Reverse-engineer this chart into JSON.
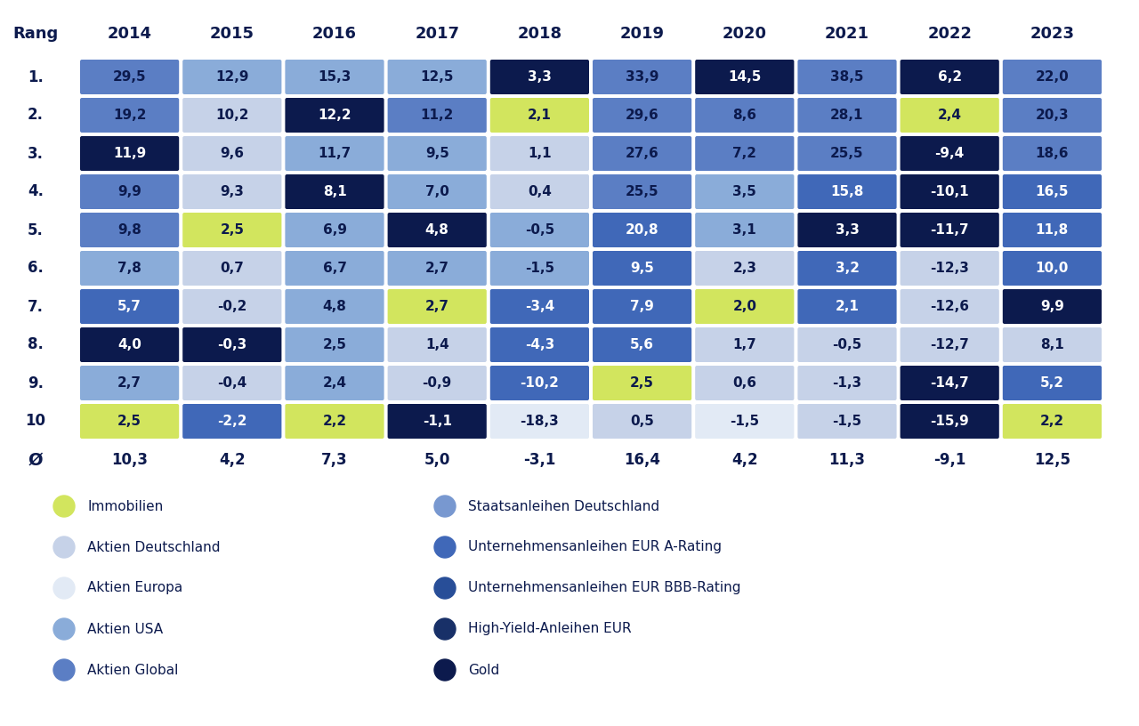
{
  "years": [
    "2014",
    "2015",
    "2016",
    "2017",
    "2018",
    "2019",
    "2020",
    "2021",
    "2022",
    "2023"
  ],
  "ranks": [
    "1.",
    "2.",
    "3.",
    "4.",
    "5.",
    "6.",
    "7.",
    "8.",
    "9.",
    "10"
  ],
  "avg_label": "Ø",
  "avg_values": [
    10.3,
    4.2,
    7.3,
    5.0,
    -3.1,
    16.4,
    4.2,
    11.3,
    -9.1,
    12.5
  ],
  "table_data": [
    [
      29.5,
      12.9,
      15.3,
      12.5,
      3.3,
      33.9,
      14.5,
      38.5,
      6.2,
      22.0
    ],
    [
      19.2,
      10.2,
      12.2,
      11.2,
      2.1,
      29.6,
      8.6,
      28.1,
      2.4,
      20.3
    ],
    [
      11.9,
      9.6,
      11.7,
      9.5,
      1.1,
      27.6,
      7.2,
      25.5,
      -9.4,
      18.6
    ],
    [
      9.9,
      9.3,
      8.1,
      7.0,
      0.4,
      25.5,
      3.5,
      15.8,
      -10.1,
      16.5
    ],
    [
      9.8,
      2.5,
      6.9,
      4.8,
      -0.5,
      20.8,
      3.1,
      3.3,
      -11.7,
      11.8
    ],
    [
      7.8,
      0.7,
      6.7,
      2.7,
      -1.5,
      9.5,
      2.3,
      3.2,
      -12.3,
      10.0
    ],
    [
      5.7,
      -0.2,
      4.8,
      2.7,
      -3.4,
      7.9,
      2.0,
      2.1,
      -12.6,
      9.9
    ],
    [
      4.0,
      -0.3,
      2.5,
      1.4,
      -4.3,
      5.6,
      1.7,
      -0.5,
      -12.7,
      8.1
    ],
    [
      2.7,
      -0.4,
      2.4,
      -0.9,
      -10.2,
      2.5,
      0.6,
      -1.3,
      -14.7,
      5.2
    ],
    [
      2.5,
      -2.2,
      2.2,
      -1.1,
      -18.3,
      0.5,
      -1.5,
      -1.5,
      -15.9,
      2.2
    ]
  ],
  "cell_colors": [
    [
      "#5b7ec4",
      "#8aacd9",
      "#8aacd9",
      "#8aacd9",
      "#0c1a4d",
      "#5b7ec4",
      "#0c1a4d",
      "#5b7ec4",
      "#0c1a4d",
      "#5b7ec4"
    ],
    [
      "#5b7ec4",
      "#c6d2e8",
      "#0c1a4d",
      "#5b7ec4",
      "#d2e55e",
      "#5b7ec4",
      "#5b7ec4",
      "#5b7ec4",
      "#d2e55e",
      "#5b7ec4"
    ],
    [
      "#0c1a4d",
      "#c6d2e8",
      "#8aacd9",
      "#8aacd9",
      "#c6d2e8",
      "#5b7ec4",
      "#5b7ec4",
      "#5b7ec4",
      "#0c1a4d",
      "#5b7ec4"
    ],
    [
      "#5b7ec4",
      "#c6d2e8",
      "#0c1a4d",
      "#8aacd9",
      "#c6d2e8",
      "#5b7ec4",
      "#8aacd9",
      "#4068b8",
      "#0c1a4d",
      "#4068b8"
    ],
    [
      "#5b7ec4",
      "#d2e55e",
      "#8aacd9",
      "#0c1a4d",
      "#8aacd9",
      "#4068b8",
      "#8aacd9",
      "#0c1a4d",
      "#0c1a4d",
      "#4068b8"
    ],
    [
      "#8aacd9",
      "#c6d2e8",
      "#8aacd9",
      "#8aacd9",
      "#8aacd9",
      "#4068b8",
      "#c6d2e8",
      "#4068b8",
      "#c6d2e8",
      "#4068b8"
    ],
    [
      "#4068b8",
      "#c6d2e8",
      "#8aacd9",
      "#d2e55e",
      "#4068b8",
      "#4068b8",
      "#d2e55e",
      "#4068b8",
      "#c6d2e8",
      "#0c1a4d"
    ],
    [
      "#0c1a4d",
      "#0c1a4d",
      "#8aacd9",
      "#c6d2e8",
      "#4068b8",
      "#4068b8",
      "#c6d2e8",
      "#c6d2e8",
      "#c6d2e8",
      "#c6d2e8"
    ],
    [
      "#8aacd9",
      "#c6d2e8",
      "#8aacd9",
      "#c6d2e8",
      "#4068b8",
      "#d2e55e",
      "#c6d2e8",
      "#c6d2e8",
      "#0c1a4d",
      "#4068b8"
    ],
    [
      "#d2e55e",
      "#4068b8",
      "#d2e55e",
      "#0c1a4d",
      "#e2eaf5",
      "#c6d2e8",
      "#e2eaf5",
      "#c6d2e8",
      "#0c1a4d",
      "#d2e55e"
    ]
  ],
  "legend_items_left": [
    {
      "label": "Immobilien",
      "color": "#d2e55e"
    },
    {
      "label": "Aktien Deutschland",
      "color": "#c6d2e8"
    },
    {
      "label": "Aktien Europa",
      "color": "#e2eaf5"
    },
    {
      "label": "Aktien USA",
      "color": "#8aacd9"
    },
    {
      "label": "Aktien Global",
      "color": "#5b7ec4"
    }
  ],
  "legend_items_right": [
    {
      "label": "Staatsanleihen Deutschland",
      "color": "#7898d0"
    },
    {
      "label": "Unternehmensanleihen EUR A-Rating",
      "color": "#4068b8"
    },
    {
      "label": "Unternehmensanleihen EUR BBB-Rating",
      "color": "#284e98"
    },
    {
      "label": "High-Yield-Anleihen EUR",
      "color": "#183068"
    },
    {
      "label": "Gold",
      "color": "#0c1a4d"
    }
  ],
  "bg_color": "#ffffff",
  "header_color": "#0c1a4d"
}
